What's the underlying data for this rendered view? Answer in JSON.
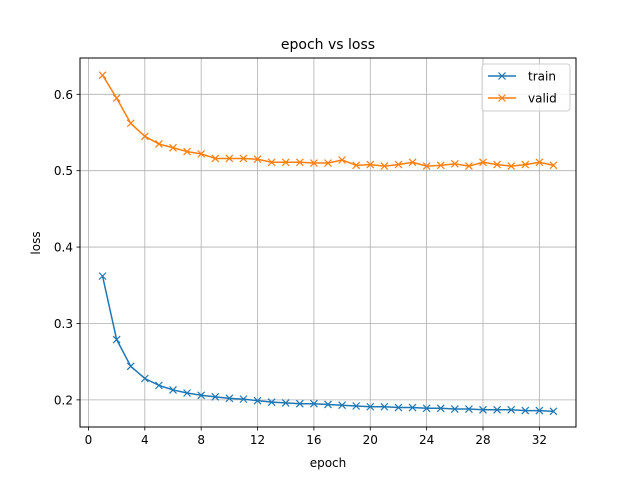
{
  "chart_data": {
    "type": "line",
    "title": "epoch vs loss",
    "xlabel": "epoch",
    "ylabel": "loss",
    "xlim": [
      -0.6,
      34.6
    ],
    "ylim": [
      0.1645,
      0.6475
    ],
    "xticks": [
      0,
      4,
      8,
      12,
      16,
      20,
      24,
      28,
      32
    ],
    "yticks": [
      0.2,
      0.3,
      0.4,
      0.5,
      0.6
    ],
    "grid": true,
    "legend_position": "top-right",
    "x": [
      1,
      2,
      3,
      4,
      5,
      6,
      7,
      8,
      9,
      10,
      11,
      12,
      13,
      14,
      15,
      16,
      17,
      18,
      19,
      20,
      21,
      22,
      23,
      24,
      25,
      26,
      27,
      28,
      29,
      30,
      31,
      32,
      33
    ],
    "series": [
      {
        "name": "train",
        "color": "#1f77b4",
        "marker": "x",
        "values": [
          0.362,
          0.279,
          0.244,
          0.228,
          0.219,
          0.213,
          0.209,
          0.206,
          0.204,
          0.202,
          0.201,
          0.199,
          0.197,
          0.196,
          0.195,
          0.195,
          0.194,
          0.193,
          0.192,
          0.191,
          0.191,
          0.19,
          0.19,
          0.189,
          0.189,
          0.188,
          0.188,
          0.187,
          0.187,
          0.187,
          0.186,
          0.186,
          0.185
        ]
      },
      {
        "name": "valid",
        "color": "#ff7f0e",
        "marker": "x",
        "values": [
          0.625,
          0.595,
          0.562,
          0.545,
          0.535,
          0.53,
          0.525,
          0.522,
          0.516,
          0.516,
          0.516,
          0.515,
          0.511,
          0.511,
          0.511,
          0.51,
          0.51,
          0.514,
          0.507,
          0.508,
          0.506,
          0.508,
          0.511,
          0.506,
          0.507,
          0.509,
          0.506,
          0.511,
          0.508,
          0.506,
          0.508,
          0.511,
          0.507
        ]
      }
    ]
  }
}
